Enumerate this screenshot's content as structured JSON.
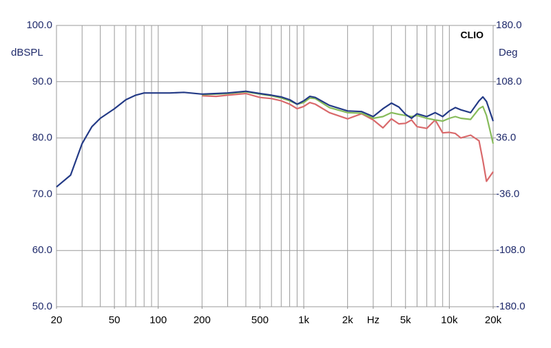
{
  "chart_data": {
    "type": "line",
    "annotation": "CLIO",
    "ylabel": "dBSPL",
    "y2label": "Deg",
    "xscale": "log",
    "grid": true,
    "xlim": [
      20,
      20000
    ],
    "ylim": [
      50,
      100
    ],
    "y2lim": [
      -180,
      180
    ],
    "xticks": [
      20,
      50,
      100,
      200,
      500,
      {
        "value": 1000,
        "label": "1k"
      },
      {
        "value": 2000,
        "label": "2k"
      },
      {
        "value": 3000,
        "label": "Hz"
      },
      {
        "value": 5000,
        "label": "5k"
      },
      {
        "value": 10000,
        "label": "10k"
      },
      {
        "value": 20000,
        "label": "20k"
      }
    ],
    "xgrid": [
      20,
      30,
      40,
      50,
      60,
      70,
      80,
      90,
      100,
      200,
      300,
      400,
      500,
      600,
      700,
      800,
      900,
      1000,
      2000,
      3000,
      4000,
      5000,
      6000,
      7000,
      8000,
      9000,
      10000,
      20000
    ],
    "yticks": [
      {
        "value": 50,
        "label": "50.0"
      },
      {
        "value": 60,
        "label": "60.0"
      },
      {
        "value": 70,
        "label": "70.0"
      },
      {
        "value": 80,
        "label": "80.0"
      },
      {
        "value": 90,
        "label": "90.0"
      },
      {
        "value": 100,
        "label": "100.0"
      }
    ],
    "y2ticks": [
      {
        "value": -180,
        "label": "-180.0"
      },
      {
        "value": -108,
        "label": "-108.0"
      },
      {
        "value": -36,
        "label": "-36.0"
      },
      {
        "value": 36,
        "label": "36.0"
      },
      {
        "value": 108,
        "label": "108.0"
      },
      {
        "value": 180,
        "label": "180.0"
      }
    ],
    "x": [
      20,
      25,
      30,
      35,
      40,
      50,
      60,
      70,
      80,
      100,
      120,
      150,
      200,
      250,
      300,
      400,
      500,
      600,
      700,
      800,
      900,
      1000,
      1100,
      1200,
      1500,
      2000,
      2500,
      3000,
      3500,
      4000,
      4500,
      5000,
      5500,
      6000,
      7000,
      8000,
      9000,
      10000,
      11000,
      12000,
      14000,
      16000,
      17000,
      18000,
      20000
    ],
    "series": [
      {
        "color": "#d9696b",
        "values": [
          null,
          null,
          null,
          null,
          null,
          null,
          null,
          null,
          null,
          null,
          null,
          null,
          87.5,
          87.4,
          87.6,
          87.9,
          87.2,
          87.0,
          86.6,
          86.0,
          85.2,
          85.6,
          86.3,
          86.0,
          84.5,
          83.4,
          84.3,
          83.2,
          81.8,
          83.4,
          82.5,
          82.6,
          83.2,
          82.0,
          81.7,
          83.2,
          80.9,
          81.0,
          80.8,
          80.0,
          80.5,
          79.5,
          76.0,
          72.3,
          74.0
        ]
      },
      {
        "color": "#86bb5a",
        "values": [
          null,
          null,
          null,
          null,
          null,
          null,
          null,
          null,
          null,
          null,
          null,
          null,
          87.7,
          87.8,
          87.9,
          88.2,
          87.8,
          87.5,
          87.1,
          86.6,
          86.0,
          86.3,
          87.1,
          87.0,
          85.4,
          84.5,
          84.4,
          83.5,
          83.8,
          84.5,
          84.2,
          84.0,
          83.8,
          84.0,
          83.5,
          83.2,
          83.0,
          83.5,
          83.8,
          83.5,
          83.3,
          85.2,
          85.6,
          84.0,
          79.0
        ]
      },
      {
        "color": "#233a86",
        "values": [
          71.3,
          73.4,
          79.0,
          82.0,
          83.5,
          85.2,
          86.8,
          87.6,
          88.0,
          88.0,
          88.0,
          88.1,
          87.8,
          87.9,
          88.0,
          88.3,
          87.9,
          87.6,
          87.3,
          86.8,
          86.0,
          86.6,
          87.4,
          87.2,
          85.8,
          84.8,
          84.7,
          83.8,
          85.2,
          86.2,
          85.5,
          84.2,
          83.5,
          84.3,
          83.8,
          84.5,
          83.8,
          84.8,
          85.4,
          85.0,
          84.5,
          86.6,
          87.3,
          86.5,
          83.0
        ]
      }
    ]
  }
}
